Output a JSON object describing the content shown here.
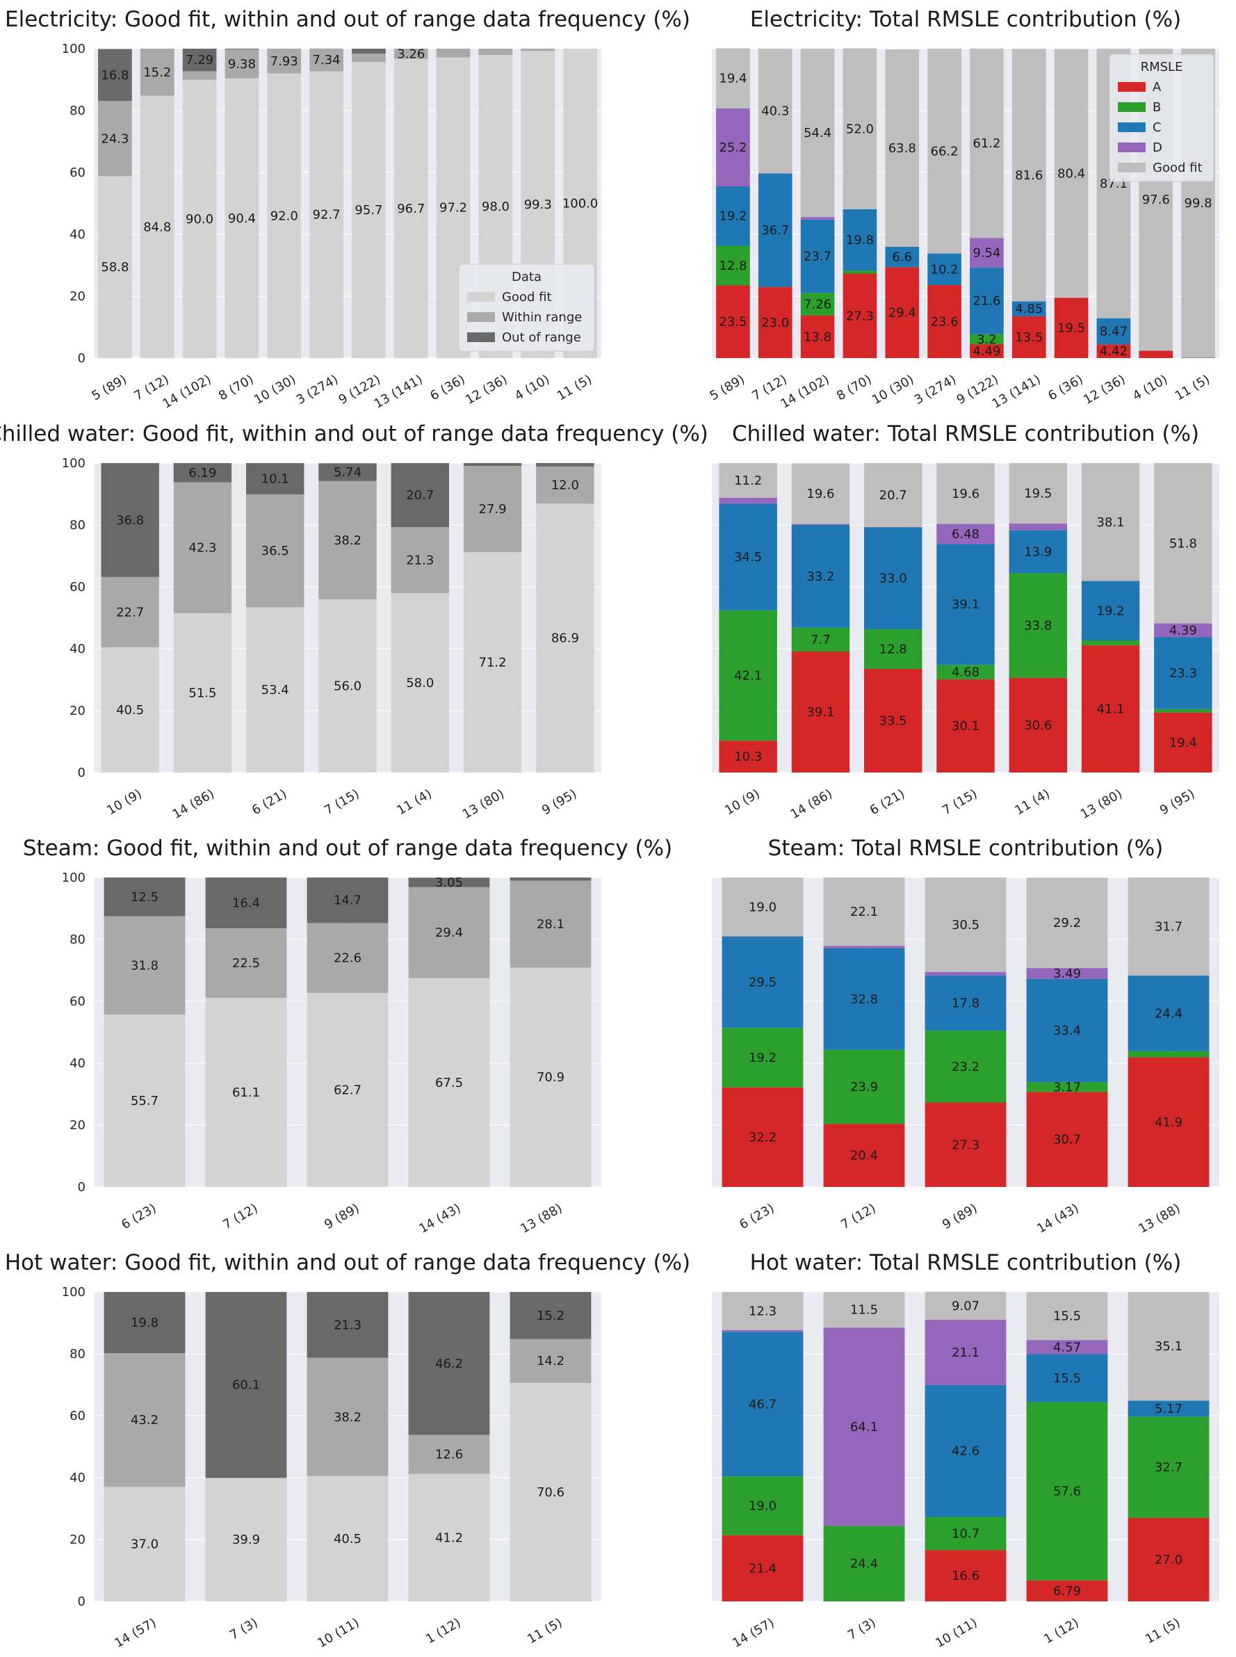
{
  "colors": {
    "background": "#eaeaf2",
    "grid": "#ffffff",
    "good_fit_freq": "#d3d3d3",
    "within_range": "#a9a9a9",
    "out_of_range": "#696969",
    "A": "#d62728",
    "B": "#2ca02c",
    "C": "#1f77b4",
    "D": "#9467bd",
    "good_fit_rmsle": "#bebebe"
  },
  "chart_data": [
    {
      "type": "bar",
      "stacked": true,
      "title": "Electricity: Good fit, within and out of range data frequency (%)",
      "categories": [
        "5 (89)",
        "7 (12)",
        "14 (102)",
        "8 (70)",
        "10 (30)",
        "3 (274)",
        "9 (122)",
        "13 (141)",
        "6 (36)",
        "12 (36)",
        "4 (10)",
        "11 (5)"
      ],
      "ylim": [
        0,
        100
      ],
      "yticks": [
        "0",
        "20",
        "40",
        "60",
        "80",
        "100"
      ],
      "legend": {
        "title": "Data",
        "position": "lower right",
        "entries": [
          "Good fit",
          "Within range",
          "Out of range"
        ]
      },
      "series": [
        {
          "name": "Good fit",
          "color_key": "good_fit_freq",
          "values": [
            58.8,
            84.8,
            90.0,
            90.4,
            92.0,
            92.7,
            95.7,
            96.7,
            97.2,
            98.0,
            99.3,
            100.0
          ],
          "labels": [
            "58.8",
            "84.8",
            "90.0",
            "90.4",
            "92.0",
            "92.7",
            "95.7",
            "96.7",
            "97.2",
            "98.0",
            "99.3",
            "100.0"
          ]
        },
        {
          "name": "Within range",
          "color_key": "within_range",
          "values": [
            24.3,
            15.2,
            2.71,
            9.38,
            7.93,
            7.34,
            2.7,
            3.26,
            2.8,
            2.0,
            0.7,
            0
          ],
          "labels": [
            "24.3",
            "15.2",
            "",
            "9.38",
            "7.93",
            "7.34",
            "",
            "3.26",
            "",
            "",
            "",
            ""
          ]
        },
        {
          "name": "Out of range",
          "color_key": "out_of_range",
          "values": [
            16.8,
            0,
            7.29,
            0.22,
            0.07,
            0,
            1.6,
            0.04,
            0,
            0,
            0,
            0
          ],
          "labels": [
            "16.8",
            "",
            "7.29",
            "",
            "",
            "",
            "",
            "",
            "",
            "",
            "",
            ""
          ]
        }
      ]
    },
    {
      "type": "bar",
      "stacked": true,
      "title": "Electricity: Total RMSLE contribution (%)",
      "categories": [
        "5 (89)",
        "7 (12)",
        "14 (102)",
        "8 (70)",
        "10 (30)",
        "3 (274)",
        "9 (122)",
        "13 (141)",
        "6 (36)",
        "12 (36)",
        "4 (10)",
        "11 (5)"
      ],
      "ylim": [
        0,
        100
      ],
      "legend": {
        "title": "RMSLE",
        "position": "upper right",
        "entries": [
          "A",
          "B",
          "C",
          "D",
          "Good fit"
        ]
      },
      "series": [
        {
          "name": "A",
          "color_key": "A",
          "values": [
            23.5,
            23.0,
            13.8,
            27.3,
            29.4,
            23.6,
            4.49,
            13.5,
            19.5,
            4.42,
            2.4,
            0
          ],
          "labels": [
            "23.5",
            "23.0",
            "13.8",
            "27.3",
            "29.4",
            "23.6",
            "4.49",
            "13.5",
            "19.5",
            "4.42",
            "",
            ""
          ]
        },
        {
          "name": "B",
          "color_key": "B",
          "values": [
            12.8,
            0,
            7.26,
            1.0,
            0,
            0,
            3.2,
            0,
            0,
            0,
            0,
            0
          ],
          "labels": [
            "12.8",
            "",
            "7.26",
            "",
            "",
            "",
            "3.2",
            "",
            "",
            "",
            "",
            ""
          ]
        },
        {
          "name": "C",
          "color_key": "C",
          "values": [
            19.2,
            36.7,
            23.7,
            19.8,
            6.6,
            10.2,
            21.6,
            4.85,
            0,
            8.47,
            0,
            0
          ],
          "labels": [
            "19.2",
            "36.7",
            "23.7",
            "19.8",
            "6.6",
            "10.2",
            "21.6",
            "4.85",
            "",
            "8.47",
            "",
            ""
          ]
        },
        {
          "name": "D",
          "color_key": "D",
          "values": [
            25.2,
            0,
            0.84,
            0,
            0,
            0,
            9.54,
            0,
            0,
            0,
            0,
            0.2
          ],
          "labels": [
            "25.2",
            "",
            "",
            "",
            "",
            "",
            "9.54",
            "",
            "",
            "",
            "",
            ""
          ]
        },
        {
          "name": "Good fit",
          "color_key": "good_fit_rmsle",
          "values": [
            19.4,
            40.3,
            54.4,
            52.0,
            63.8,
            66.2,
            61.2,
            81.6,
            80.4,
            87.1,
            97.6,
            99.8
          ],
          "labels": [
            "19.4",
            "40.3",
            "54.4",
            "52.0",
            "63.8",
            "66.2",
            "61.2",
            "81.6",
            "80.4",
            "87.1",
            "97.6",
            "99.8"
          ]
        }
      ]
    },
    {
      "type": "bar",
      "stacked": true,
      "title": "Chilled water: Good fit, within and out of range data frequency (%)",
      "categories": [
        "10 (9)",
        "14 (86)",
        "6 (21)",
        "7 (15)",
        "11 (4)",
        "13 (80)",
        "9 (95)"
      ],
      "ylim": [
        0,
        100
      ],
      "yticks": [
        "0",
        "20",
        "40",
        "60",
        "80",
        "100"
      ],
      "series": [
        {
          "name": "Good fit",
          "color_key": "good_fit_freq",
          "values": [
            40.5,
            51.5,
            53.4,
            56.0,
            58.0,
            71.2,
            86.9
          ],
          "labels": [
            "40.5",
            "51.5",
            "53.4",
            "56.0",
            "58.0",
            "71.2",
            "86.9"
          ]
        },
        {
          "name": "Within range",
          "color_key": "within_range",
          "values": [
            22.7,
            42.3,
            36.5,
            38.2,
            21.3,
            27.9,
            12.0
          ],
          "labels": [
            "22.7",
            "42.3",
            "36.5",
            "38.2",
            "21.3",
            "27.9",
            "12.0"
          ]
        },
        {
          "name": "Out of range",
          "color_key": "out_of_range",
          "values": [
            36.8,
            6.19,
            10.1,
            5.74,
            20.7,
            0.9,
            1.1
          ],
          "labels": [
            "36.8",
            "6.19",
            "10.1",
            "5.74",
            "20.7",
            "",
            ""
          ]
        }
      ]
    },
    {
      "type": "bar",
      "stacked": true,
      "title": "Chilled water: Total RMSLE contribution (%)",
      "categories": [
        "10 (9)",
        "14 (86)",
        "6 (21)",
        "7 (15)",
        "11 (4)",
        "13 (80)",
        "9 (95)"
      ],
      "ylim": [
        0,
        100
      ],
      "series": [
        {
          "name": "A",
          "color_key": "A",
          "values": [
            10.3,
            39.1,
            33.5,
            30.1,
            30.6,
            41.1,
            19.4
          ],
          "labels": [
            "10.3",
            "39.1",
            "33.5",
            "30.1",
            "30.6",
            "41.1",
            "19.4"
          ]
        },
        {
          "name": "B",
          "color_key": "B",
          "values": [
            42.1,
            7.7,
            12.8,
            4.68,
            33.8,
            1.6,
            1.1
          ],
          "labels": [
            "42.1",
            "7.7",
            "12.8",
            "4.68",
            "33.8",
            "",
            ""
          ]
        },
        {
          "name": "C",
          "color_key": "C",
          "values": [
            34.5,
            33.2,
            33.0,
            39.1,
            13.9,
            19.2,
            23.3
          ],
          "labels": [
            "34.5",
            "33.2",
            "33.0",
            "39.1",
            "13.9",
            "19.2",
            "23.3"
          ]
        },
        {
          "name": "D",
          "color_key": "D",
          "values": [
            1.9,
            0.3,
            0,
            6.48,
            2.2,
            0,
            4.39
          ],
          "labels": [
            "",
            "",
            "",
            "6.48",
            "",
            "",
            "4.39"
          ]
        },
        {
          "name": "Good fit",
          "color_key": "good_fit_rmsle",
          "values": [
            11.2,
            19.6,
            20.7,
            19.6,
            19.5,
            38.1,
            51.8
          ],
          "labels": [
            "11.2",
            "19.6",
            "20.7",
            "19.6",
            "19.5",
            "38.1",
            "51.8"
          ]
        }
      ]
    },
    {
      "type": "bar",
      "stacked": true,
      "title": "Steam: Good fit, within and out of range data frequency (%)",
      "categories": [
        "6 (23)",
        "7 (12)",
        "9 (89)",
        "14 (43)",
        "13 (88)"
      ],
      "ylim": [
        0,
        100
      ],
      "yticks": [
        "0",
        "20",
        "40",
        "60",
        "80",
        "100"
      ],
      "series": [
        {
          "name": "Good fit",
          "color_key": "good_fit_freq",
          "values": [
            55.7,
            61.1,
            62.7,
            67.5,
            70.9
          ],
          "labels": [
            "55.7",
            "61.1",
            "62.7",
            "67.5",
            "70.9"
          ]
        },
        {
          "name": "Within range",
          "color_key": "within_range",
          "values": [
            31.8,
            22.5,
            22.6,
            29.4,
            28.1
          ],
          "labels": [
            "31.8",
            "22.5",
            "22.6",
            "29.4",
            "28.1"
          ]
        },
        {
          "name": "Out of range",
          "color_key": "out_of_range",
          "values": [
            12.5,
            16.4,
            14.7,
            3.05,
            1.0
          ],
          "labels": [
            "12.5",
            "16.4",
            "14.7",
            "3.05",
            ""
          ]
        }
      ]
    },
    {
      "type": "bar",
      "stacked": true,
      "title": "Steam: Total RMSLE contribution (%)",
      "categories": [
        "6 (23)",
        "7 (12)",
        "9 (89)",
        "14 (43)",
        "13 (88)"
      ],
      "ylim": [
        0,
        100
      ],
      "series": [
        {
          "name": "A",
          "color_key": "A",
          "values": [
            32.2,
            20.4,
            27.3,
            30.7,
            41.9
          ],
          "labels": [
            "32.2",
            "20.4",
            "27.3",
            "30.7",
            "41.9"
          ]
        },
        {
          "name": "B",
          "color_key": "B",
          "values": [
            19.2,
            23.9,
            23.2,
            3.17,
            2.0
          ],
          "labels": [
            "19.2",
            "23.9",
            "23.2",
            "3.17",
            ""
          ]
        },
        {
          "name": "C",
          "color_key": "C",
          "values": [
            29.5,
            32.8,
            17.8,
            33.4,
            24.4
          ],
          "labels": [
            "29.5",
            "32.8",
            "17.8",
            "33.4",
            "24.4"
          ]
        },
        {
          "name": "D",
          "color_key": "D",
          "values": [
            0.1,
            0.8,
            1.2,
            3.49,
            0
          ],
          "labels": [
            "",
            "",
            "",
            "3.49",
            ""
          ]
        },
        {
          "name": "Good fit",
          "color_key": "good_fit_rmsle",
          "values": [
            19.0,
            22.1,
            30.5,
            29.2,
            31.7
          ],
          "labels": [
            "19.0",
            "22.1",
            "30.5",
            "29.2",
            "31.7"
          ]
        }
      ]
    },
    {
      "type": "bar",
      "stacked": true,
      "title": "Hot water: Good fit, within and out of range data frequency (%)",
      "categories": [
        "14 (57)",
        "7 (3)",
        "10 (11)",
        "1 (12)",
        "11 (5)"
      ],
      "ylim": [
        0,
        100
      ],
      "yticks": [
        "0",
        "20",
        "40",
        "60",
        "80",
        "100"
      ],
      "series": [
        {
          "name": "Good fit",
          "color_key": "good_fit_freq",
          "values": [
            37.0,
            39.9,
            40.5,
            41.2,
            70.6
          ],
          "labels": [
            "37.0",
            "39.9",
            "40.5",
            "41.2",
            "70.6"
          ]
        },
        {
          "name": "Within range",
          "color_key": "within_range",
          "values": [
            43.2,
            0,
            38.2,
            12.6,
            14.2
          ],
          "labels": [
            "43.2",
            "",
            "38.2",
            "12.6",
            "14.2"
          ]
        },
        {
          "name": "Out of range",
          "color_key": "out_of_range",
          "values": [
            19.8,
            60.1,
            21.3,
            46.2,
            15.2
          ],
          "labels": [
            "19.8",
            "60.1",
            "21.3",
            "46.2",
            "15.2"
          ]
        }
      ]
    },
    {
      "type": "bar",
      "stacked": true,
      "title": "Hot water: Total RMSLE contribution (%)",
      "categories": [
        "14 (57)",
        "7 (3)",
        "10 (11)",
        "1 (12)",
        "11 (5)"
      ],
      "ylim": [
        0,
        100
      ],
      "series": [
        {
          "name": "A",
          "color_key": "A",
          "values": [
            21.4,
            0,
            16.6,
            6.79,
            27.0
          ],
          "labels": [
            "21.4",
            "",
            "16.6",
            "6.79",
            "27.0"
          ]
        },
        {
          "name": "B",
          "color_key": "B",
          "values": [
            19.0,
            24.4,
            10.7,
            57.6,
            32.7
          ],
          "labels": [
            "19.0",
            "24.4",
            "10.7",
            "57.6",
            "32.7"
          ]
        },
        {
          "name": "C",
          "color_key": "C",
          "values": [
            46.7,
            0,
            42.6,
            15.5,
            5.17
          ],
          "labels": [
            "46.7",
            "",
            "42.6",
            "15.5",
            "5.17"
          ]
        },
        {
          "name": "D",
          "color_key": "D",
          "values": [
            0.6,
            64.1,
            21.1,
            4.57,
            0
          ],
          "labels": [
            "",
            "64.1",
            "21.1",
            "4.57",
            ""
          ]
        },
        {
          "name": "Good fit",
          "color_key": "good_fit_rmsle",
          "values": [
            12.3,
            11.5,
            9.07,
            15.5,
            35.1
          ],
          "labels": [
            "12.3",
            "11.5",
            "9.07",
            "15.5",
            "35.1"
          ]
        }
      ]
    }
  ]
}
